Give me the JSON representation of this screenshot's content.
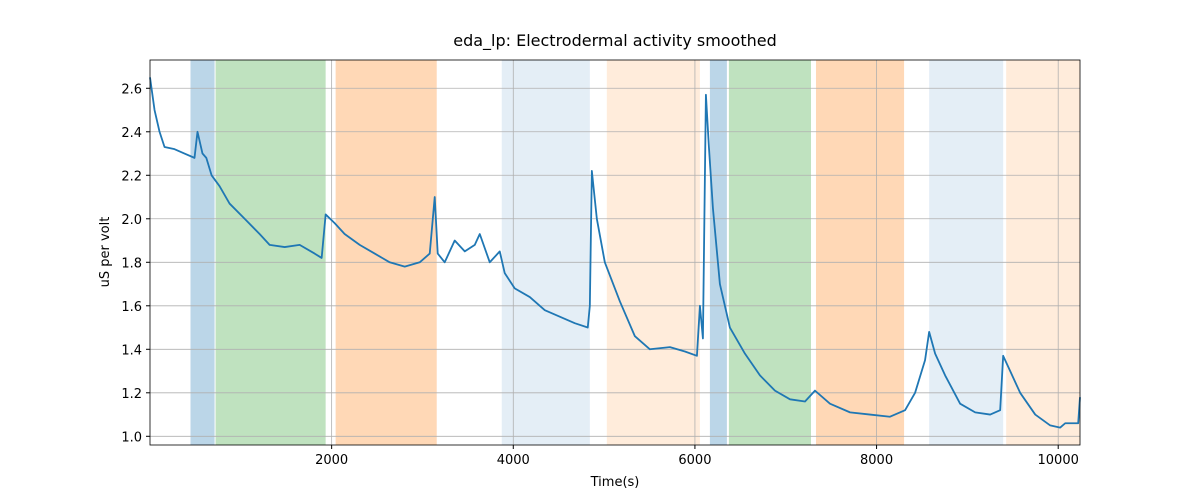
{
  "chart_data": {
    "type": "line",
    "title": "eda_lp: Electrodermal activity smoothed",
    "x_label": "Time(s)",
    "y_label": "uS per volt",
    "xlim": [
      0,
      10240
    ],
    "ylim": [
      0.96,
      2.73
    ],
    "xticks": [
      2000,
      4000,
      6000,
      8000,
      10000
    ],
    "yticks": [
      {
        "value": 1,
        "label": "1.0"
      },
      1.2,
      1.4,
      1.6,
      1.8,
      {
        "value": 2,
        "label": "2.0"
      },
      2.2,
      2.4,
      2.6
    ],
    "grid": true,
    "spans": [
      {
        "start": 446,
        "end": 711,
        "color": "#1f77b4",
        "alpha": 0.3
      },
      {
        "start": 722,
        "end": 1934,
        "color": "#2ca02c",
        "alpha": 0.3
      },
      {
        "start": 2044,
        "end": 3157,
        "color": "#ff7f0e",
        "alpha": 0.3
      },
      {
        "start": 3873,
        "end": 4843,
        "color": "#1f77b4",
        "alpha": 0.12
      },
      {
        "start": 5030,
        "end": 6055,
        "color": "#ff7f0e",
        "alpha": 0.15
      },
      {
        "start": 6165,
        "end": 6352,
        "color": "#1f77b4",
        "alpha": 0.3
      },
      {
        "start": 6374,
        "end": 7278,
        "color": "#2ca02c",
        "alpha": 0.3
      },
      {
        "start": 7333,
        "end": 8303,
        "color": "#ff7f0e",
        "alpha": 0.3
      },
      {
        "start": 8579,
        "end": 9394,
        "color": "#1f77b4",
        "alpha": 0.12
      },
      {
        "start": 9427,
        "end": 10240,
        "color": "#ff7f0e",
        "alpha": 0.15
      }
    ],
    "x": [
      0,
      50,
      105,
      160,
      270,
      380,
      490,
      523,
      578,
      620,
      678,
      766,
      876,
      1042,
      1207,
      1317,
      1483,
      1648,
      1813,
      1890,
      1934,
      2033,
      2143,
      2309,
      2474,
      2639,
      2805,
      2970,
      3080,
      3135,
      3168,
      3245,
      3355,
      3466,
      3576,
      3631,
      3741,
      3851,
      3906,
      4016,
      4182,
      4347,
      4512,
      4677,
      4820,
      4843,
      4865,
      4920,
      5008,
      5174,
      5339,
      5504,
      5725,
      5890,
      6022,
      6055,
      6088,
      6121,
      6154,
      6198,
      6275,
      6385,
      6551,
      6716,
      6881,
      7047,
      7212,
      7322,
      7487,
      7708,
      7928,
      8148,
      8314,
      8424,
      8534,
      8579,
      8645,
      8755,
      8920,
      9086,
      9251,
      9361,
      9394,
      9471,
      9581,
      9747,
      9912,
      10022,
      10077,
      10220,
      10240
    ],
    "series": [
      {
        "color": "#1f77b4",
        "values": [
          2.65,
          2.5,
          2.4,
          2.33,
          2.32,
          2.3,
          2.28,
          2.4,
          2.3,
          2.28,
          2.2,
          2.15,
          2.07,
          2.0,
          1.93,
          1.88,
          1.87,
          1.88,
          1.84,
          1.82,
          2.02,
          1.98,
          1.93,
          1.88,
          1.84,
          1.8,
          1.78,
          1.8,
          1.84,
          2.1,
          1.84,
          1.8,
          1.9,
          1.85,
          1.88,
          1.93,
          1.8,
          1.85,
          1.75,
          1.68,
          1.64,
          1.58,
          1.55,
          1.52,
          1.5,
          1.6,
          2.22,
          2.0,
          1.8,
          1.62,
          1.46,
          1.4,
          1.41,
          1.39,
          1.37,
          1.6,
          1.45,
          2.57,
          2.33,
          2.05,
          1.7,
          1.5,
          1.38,
          1.28,
          1.21,
          1.17,
          1.16,
          1.21,
          1.15,
          1.11,
          1.1,
          1.09,
          1.12,
          1.2,
          1.35,
          1.48,
          1.38,
          1.28,
          1.15,
          1.11,
          1.1,
          1.12,
          1.37,
          1.3,
          1.2,
          1.1,
          1.05,
          1.04,
          1.06,
          1.06,
          1.18
        ]
      }
    ]
  }
}
